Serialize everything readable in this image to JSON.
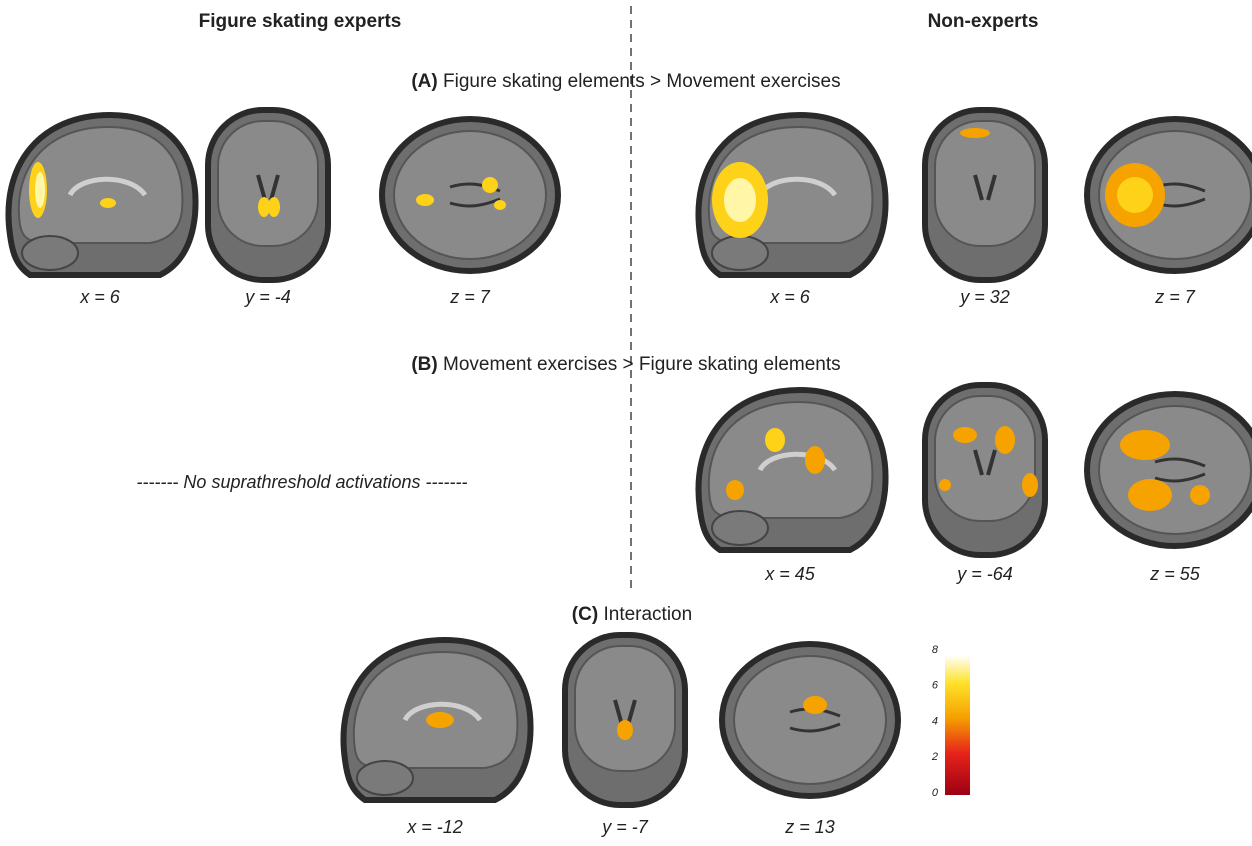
{
  "columns": {
    "left": "Figure skating experts",
    "right": "Non-experts"
  },
  "panels": [
    {
      "letter": "(A)",
      "title": "Figure skating elements > Movement exercises",
      "left": {
        "slices": [
          "x = 6",
          "y = -4",
          "z = 7"
        ]
      },
      "right": {
        "slices": [
          "x = 6",
          "y = 32",
          "z = 7"
        ]
      }
    },
    {
      "letter": "(B)",
      "title": "Movement exercises > Figure skating elements",
      "left": {
        "note": "------- No suprathreshold activations -------"
      },
      "right": {
        "slices": [
          "x = 45",
          "y = -64",
          "z = 55"
        ]
      }
    },
    {
      "letter": "(C)",
      "title": "Interaction",
      "slices": [
        "x = -12",
        "y = -7",
        "z = 13"
      ]
    }
  ],
  "colorbar": {
    "ticks": [
      0,
      2,
      4,
      6,
      8
    ]
  }
}
